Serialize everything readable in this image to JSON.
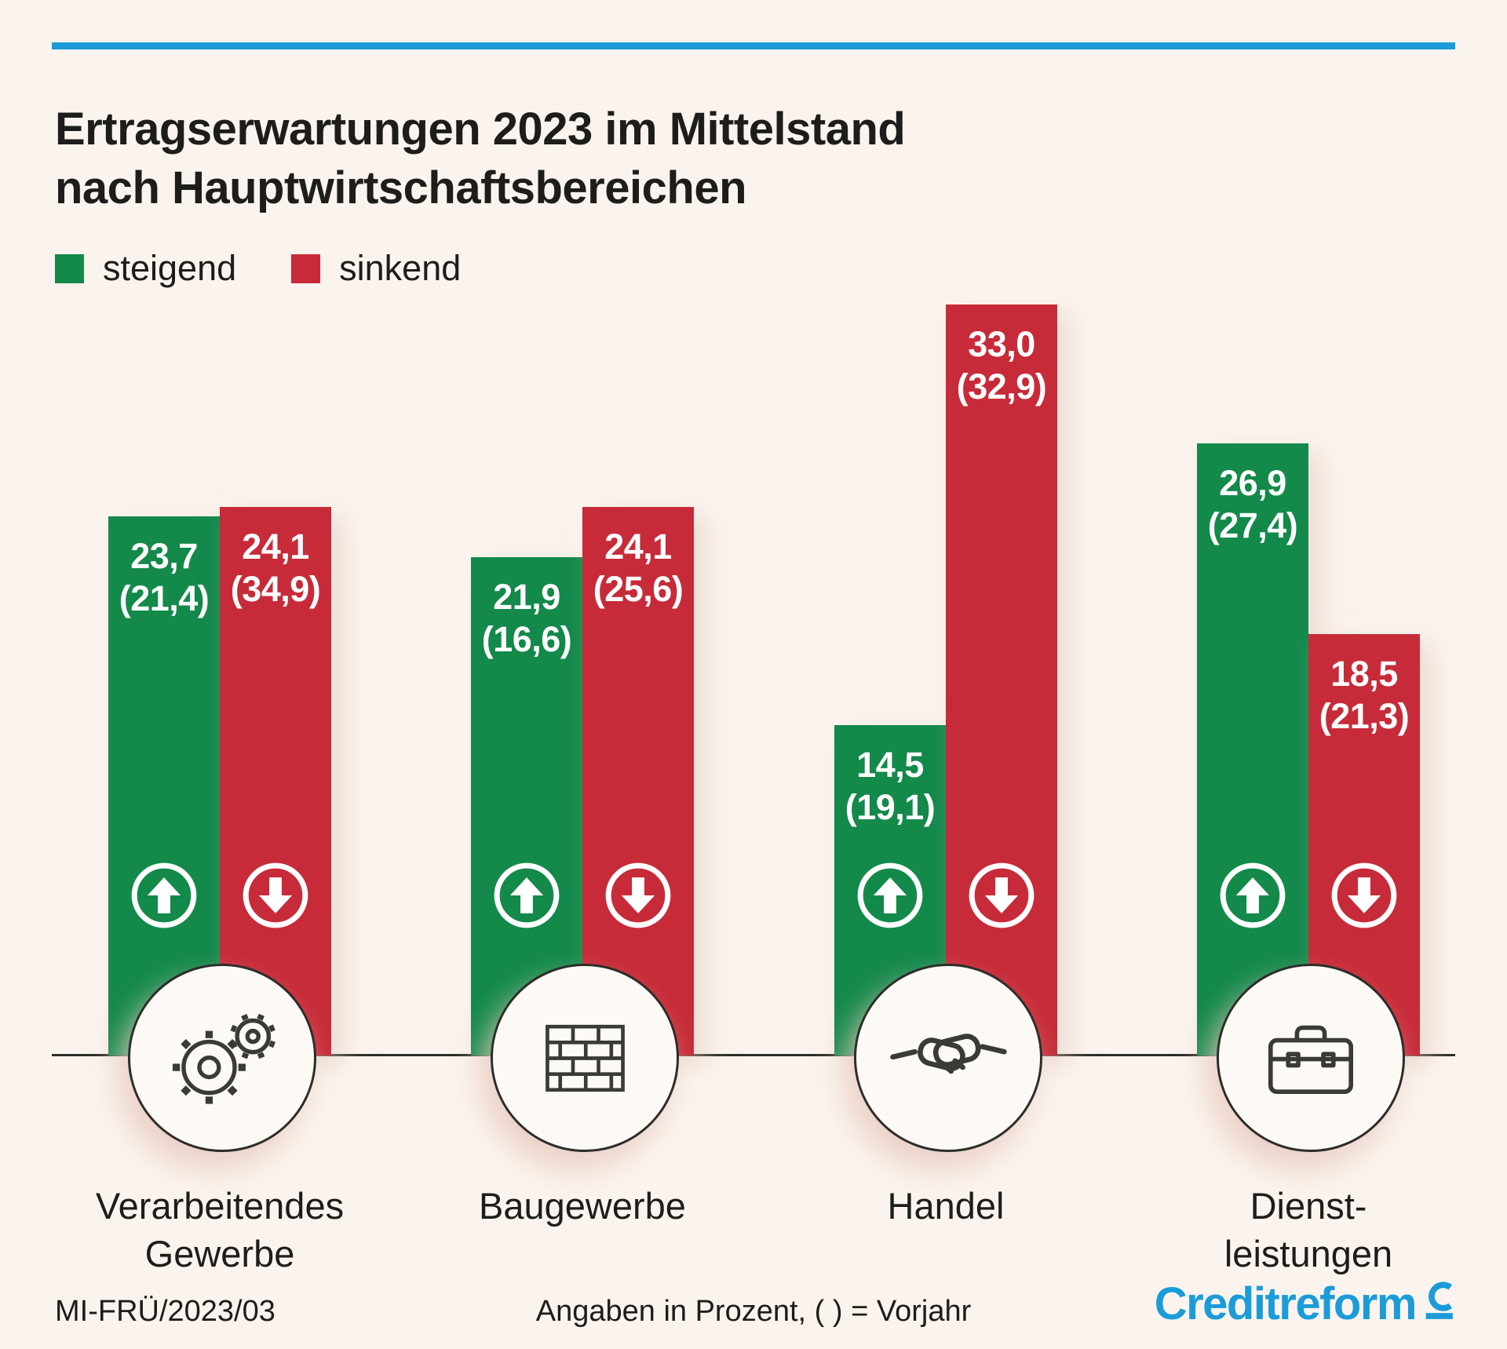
{
  "meta": {
    "background": "#fbf4ee",
    "accent_blue": "#1b9cd8",
    "green": "#13894a",
    "red": "#c72b39",
    "text_color": "#1d1d1b"
  },
  "title": {
    "line1": "Ertragserwartungen 2023 im Mittelstand",
    "line2": "nach Hauptwirtschaftsbereichen"
  },
  "legend": {
    "items": [
      {
        "label": "steigend",
        "color": "#13894a"
      },
      {
        "label": "sinkend",
        "color": "#c72b39"
      }
    ]
  },
  "chart_data": {
    "type": "bar",
    "title": "Ertragserwartungen 2023 im Mittelstand nach Hauptwirtschaftsbereichen",
    "unit": "percent",
    "categories": [
      "Verarbeitendes Gewerbe",
      "Baugewerbe",
      "Handel",
      "Dienstleistungen"
    ],
    "series": [
      {
        "name": "steigend",
        "color": "#13894a",
        "values": [
          23.7,
          21.9,
          14.5,
          26.9
        ],
        "previous_year": [
          21.4,
          16.6,
          19.1,
          27.4
        ]
      },
      {
        "name": "sinkend",
        "color": "#c72b39",
        "values": [
          24.1,
          24.1,
          33.0,
          18.5
        ],
        "previous_year": [
          34.9,
          25.6,
          32.9,
          21.3
        ]
      }
    ],
    "ylim": [
      0,
      34
    ],
    "grid": false,
    "legend_position": "top-left",
    "note": "Angaben in Prozent, ( ) = Vorjahr"
  },
  "groups": [
    {
      "label_line1": "Verarbeitendes",
      "label_line2": "Gewerbe",
      "icon": "gears-icon",
      "green_value": "23,7",
      "green_prev": "(21,4)",
      "red_value": "24,1",
      "red_prev": "(34,9)"
    },
    {
      "label_line1": "Baugewerbe",
      "label_line2": "",
      "icon": "bricks-icon",
      "green_value": "21,9",
      "green_prev": "(16,6)",
      "red_value": "24,1",
      "red_prev": "(25,6)"
    },
    {
      "label_line1": "Handel",
      "label_line2": "",
      "icon": "handshake-icon",
      "green_value": "14,5",
      "green_prev": "(19,1)",
      "red_value": "33,0",
      "red_prev": "(32,9)"
    },
    {
      "label_line1": "Dienst-",
      "label_line2": "leistungen",
      "icon": "briefcase-icon",
      "green_value": "26,9",
      "green_prev": "(27,4)",
      "red_value": "18,5",
      "red_prev": "(21,3)"
    }
  ],
  "footer": {
    "left": "MI-FRÜ/2023/03",
    "center": "Angaben in Prozent, ( ) = Vorjahr",
    "brand": "Creditreform"
  }
}
